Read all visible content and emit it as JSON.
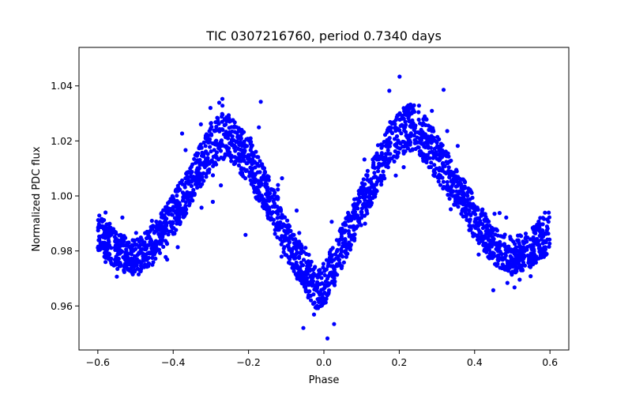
{
  "chart_data": {
    "type": "scatter",
    "title": "TIC 0307216760, period 0.7340 days",
    "xlabel": "Phase",
    "ylabel": "Normalized PDC flux",
    "xlim": [
      -0.65,
      0.65
    ],
    "ylim": [
      0.944,
      1.054
    ],
    "x_ticks": [
      -0.6,
      -0.4,
      -0.2,
      0.0,
      0.2,
      0.4,
      0.6
    ],
    "x_tick_labels": [
      "−0.6",
      "−0.4",
      "−0.2",
      "0.0",
      "0.2",
      "0.4",
      "0.6"
    ],
    "y_ticks": [
      0.96,
      0.98,
      1.0,
      1.02,
      1.04
    ],
    "y_tick_labels": [
      "0.96",
      "0.98",
      "1.00",
      "1.02",
      "1.04"
    ],
    "grid": false,
    "marker_color": "#0000ff",
    "series": [
      {
        "name": "PDC flux",
        "phase_range": [
          -0.6,
          0.6
        ],
        "period_days": 0.734,
        "envelope": {
          "phase": [
            -0.6,
            -0.55,
            -0.5,
            -0.45,
            -0.4,
            -0.35,
            -0.3,
            -0.27,
            -0.25,
            -0.2,
            -0.15,
            -0.1,
            -0.05,
            -0.02,
            0.0,
            0.05,
            0.1,
            0.15,
            0.2,
            0.23,
            0.25,
            0.3,
            0.35,
            0.4,
            0.45,
            0.5,
            0.55,
            0.6
          ],
          "flux": [
            0.987,
            0.98,
            0.977,
            0.983,
            0.993,
            1.005,
            1.018,
            1.022,
            1.021,
            1.013,
            1.0,
            0.985,
            0.972,
            0.966,
            0.968,
            0.982,
            0.997,
            1.012,
            1.023,
            1.025,
            1.024,
            1.014,
            1.003,
            0.992,
            0.982,
            0.978,
            0.981,
            0.988
          ],
          "spread": [
            0.008,
            0.008,
            0.008,
            0.008,
            0.009,
            0.009,
            0.01,
            0.01,
            0.01,
            0.01,
            0.01,
            0.009,
            0.009,
            0.009,
            0.009,
            0.009,
            0.009,
            0.01,
            0.01,
            0.01,
            0.01,
            0.01,
            0.009,
            0.009,
            0.008,
            0.008,
            0.008,
            0.01
          ]
        }
      }
    ]
  }
}
